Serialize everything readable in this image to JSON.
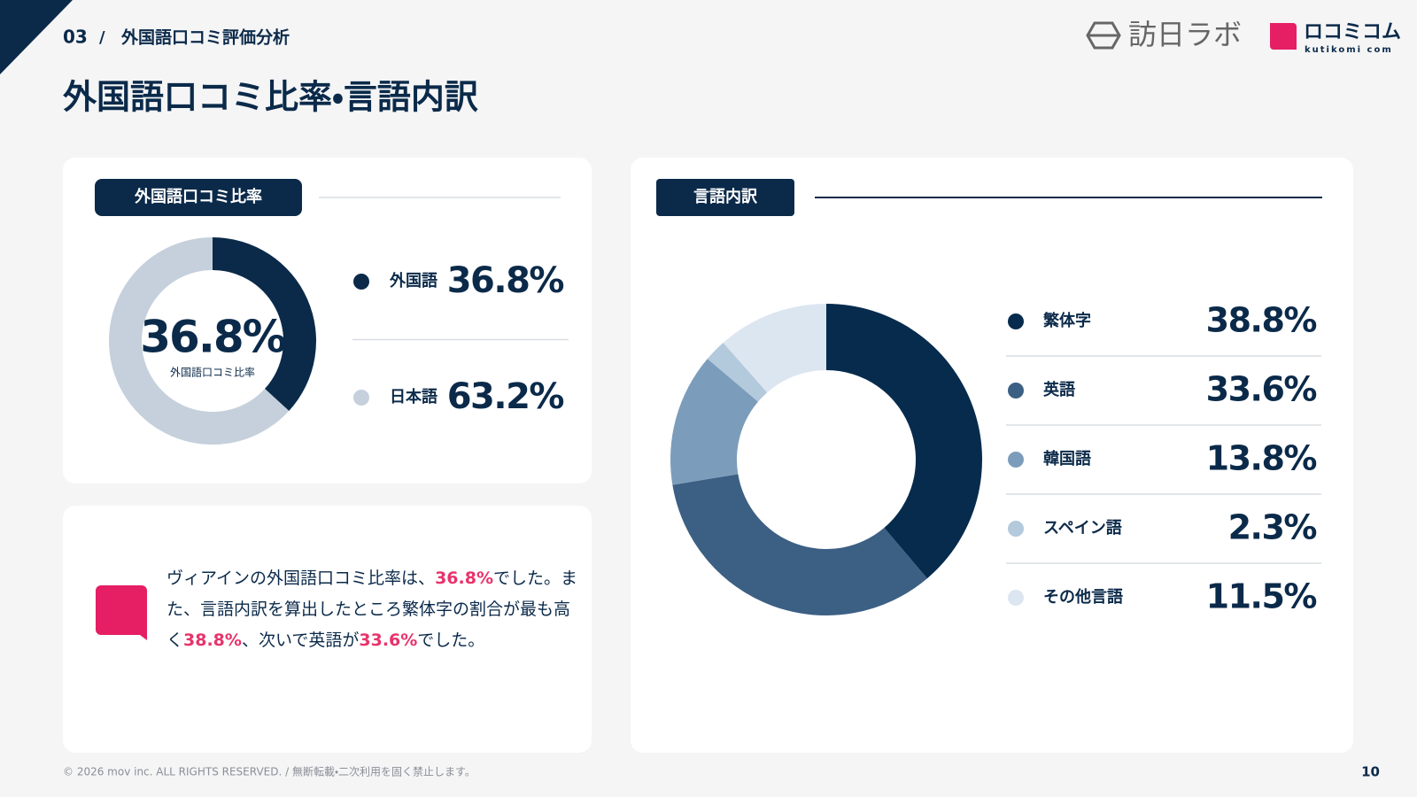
{
  "header": {
    "section": "03",
    "breadcrumb": "外国語口コミ評価分析",
    "title": "外国語口コミ比率・言語内訳",
    "logos": [
      "訪日ラボ",
      "ロコミコム",
      "kutikomi com"
    ]
  },
  "chart_data": [
    {
      "type": "pie",
      "title": "外国語口コミ比率",
      "categories": [
        "外国語",
        "日本語"
      ],
      "values": [
        36.8,
        63.2
      ],
      "value_labels": [
        "36.8%",
        "63.2%"
      ],
      "colors": [
        "#0b2a4a",
        "#c5d0dc"
      ]
    },
    {
      "type": "pie",
      "title": "言語内訳",
      "categories": [
        "繁体字",
        "英語",
        "韓国語",
        "スペイン語",
        "その他言語"
      ],
      "values": [
        38.8,
        33.6,
        13.8,
        2.3,
        11.5
      ],
      "value_labels": [
        "38.8%",
        "33.6%",
        "13.8%",
        "2.3%",
        "11.5%"
      ],
      "colors": [
        "#062b4d",
        "#3c5f84",
        "#7b9dbb",
        "#b3c9dc",
        "#dce6f0"
      ]
    }
  ],
  "summary": [
    "ヴィアインの外国語口コミ比率は、",
    "36.8%",
    "でした。また、言語内訳を算出したところ繁体字の割合が最も高く",
    "38.8%",
    "、次いで英語が",
    "33.6%",
    "でした。"
  ],
  "footer": {
    "copyright": "© 2026 mov inc. ALL RIGHTS RESERVED. / 無断転載・二次利用を固く禁止します。",
    "page": "10"
  }
}
